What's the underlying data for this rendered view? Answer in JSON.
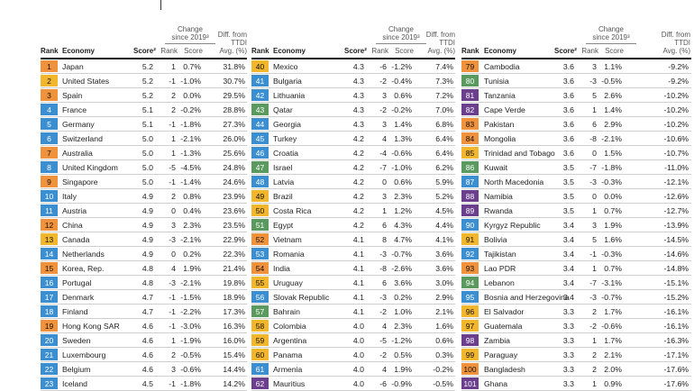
{
  "headers": {
    "rank": "Rank",
    "economy": "Economy",
    "score": "Score²",
    "change_group": "Change\nsince 2019³",
    "change_rank": "Rank",
    "change_score": "Score",
    "diff": "Diff. from\nTTDI\nAvg. (%)"
  },
  "colors": {
    "orange": "#f0923c",
    "blue": "#3b8fd1",
    "yellow": "#f2b62c",
    "green": "#5a9a5f",
    "teal": "#2e8bb8",
    "purple": "#6b3f8e"
  },
  "columns": [
    {
      "rows": [
        {
          "rank": "1",
          "economy": "Japan",
          "score": "5.2",
          "crank": "1",
          "cscore": "0.7%",
          "diff": "31.8%",
          "color": "#f0923c"
        },
        {
          "rank": "2",
          "economy": "United States",
          "score": "5.2",
          "crank": "-1",
          "cscore": "-1.0%",
          "diff": "30.7%",
          "color": "#f2b62c"
        },
        {
          "rank": "3",
          "economy": "Spain",
          "score": "5.2",
          "crank": "2",
          "cscore": "0.0%",
          "diff": "29.5%",
          "color": "#f0923c"
        },
        {
          "rank": "4",
          "economy": "France",
          "score": "5.1",
          "crank": "2",
          "cscore": "-0.2%",
          "diff": "28.8%",
          "color": "#3b8fd1"
        },
        {
          "rank": "5",
          "economy": "Germany",
          "score": "5.1",
          "crank": "-1",
          "cscore": "-1.8%",
          "diff": "27.3%",
          "color": "#3b8fd1"
        },
        {
          "rank": "6",
          "economy": "Switzerland",
          "score": "5.0",
          "crank": "1",
          "cscore": "-2.1%",
          "diff": "26.0%",
          "color": "#3b8fd1"
        },
        {
          "rank": "7",
          "economy": "Australia",
          "score": "5.0",
          "crank": "1",
          "cscore": "-1.3%",
          "diff": "25.6%",
          "color": "#f0923c"
        },
        {
          "rank": "8",
          "economy": "United Kingdom",
          "score": "5.0",
          "crank": "-5",
          "cscore": "-4.5%",
          "diff": "24.8%",
          "color": "#3b8fd1"
        },
        {
          "rank": "9",
          "economy": "Singapore",
          "score": "5.0",
          "crank": "-1",
          "cscore": "-1.4%",
          "diff": "24.6%",
          "color": "#f0923c"
        },
        {
          "rank": "10",
          "economy": "Italy",
          "score": "4.9",
          "crank": "2",
          "cscore": "0.8%",
          "diff": "23.9%",
          "color": "#3b8fd1"
        },
        {
          "rank": "11",
          "economy": "Austria",
          "score": "4.9",
          "crank": "0",
          "cscore": "0.4%",
          "diff": "23.6%",
          "color": "#3b8fd1"
        },
        {
          "rank": "12",
          "economy": "China",
          "score": "4.9",
          "crank": "3",
          "cscore": "2.3%",
          "diff": "23.5%",
          "color": "#f0923c"
        },
        {
          "rank": "13",
          "economy": "Canada",
          "score": "4.9",
          "crank": "-3",
          "cscore": "-2.1%",
          "diff": "22.9%",
          "color": "#f2b62c"
        },
        {
          "rank": "14",
          "economy": "Netherlands",
          "score": "4.9",
          "crank": "0",
          "cscore": "0.2%",
          "diff": "22.3%",
          "color": "#3b8fd1"
        },
        {
          "rank": "15",
          "economy": "Korea, Rep.",
          "score": "4.8",
          "crank": "4",
          "cscore": "1.9%",
          "diff": "21.4%",
          "color": "#f0923c"
        },
        {
          "rank": "16",
          "economy": "Portugal",
          "score": "4.8",
          "crank": "-3",
          "cscore": "-2.1%",
          "diff": "19.8%",
          "color": "#3b8fd1"
        },
        {
          "rank": "17",
          "economy": "Denmark",
          "score": "4.7",
          "crank": "-1",
          "cscore": "-1.5%",
          "diff": "18.9%",
          "color": "#3b8fd1"
        },
        {
          "rank": "18",
          "economy": "Finland",
          "score": "4.7",
          "crank": "-1",
          "cscore": "-2.2%",
          "diff": "17.3%",
          "color": "#3b8fd1"
        },
        {
          "rank": "19",
          "economy": "Hong Kong SAR",
          "score": "4.6",
          "crank": "-1",
          "cscore": "-3.0%",
          "diff": "16.3%",
          "color": "#f0923c"
        },
        {
          "rank": "20",
          "economy": "Sweden",
          "score": "4.6",
          "crank": "1",
          "cscore": "-1.9%",
          "diff": "16.0%",
          "color": "#3b8fd1"
        },
        {
          "rank": "21",
          "economy": "Luxembourg",
          "score": "4.6",
          "crank": "2",
          "cscore": "-0.5%",
          "diff": "15.4%",
          "color": "#3b8fd1"
        },
        {
          "rank": "22",
          "economy": "Belgium",
          "score": "4.6",
          "crank": "3",
          "cscore": "-0.6%",
          "diff": "14.4%",
          "color": "#3b8fd1"
        },
        {
          "rank": "23",
          "economy": "Iceland",
          "score": "4.5",
          "crank": "-1",
          "cscore": "-1.8%",
          "diff": "14.2%",
          "color": "#3b8fd1"
        }
      ]
    },
    {
      "rows": [
        {
          "rank": "40",
          "economy": "Mexico",
          "score": "4.3",
          "crank": "-6",
          "cscore": "-1.2%",
          "diff": "7.4%",
          "color": "#f2b62c"
        },
        {
          "rank": "41",
          "economy": "Bulgaria",
          "score": "4.3",
          "crank": "-2",
          "cscore": "-0.4%",
          "diff": "7.3%",
          "color": "#3b8fd1"
        },
        {
          "rank": "42",
          "economy": "Lithuania",
          "score": "4.3",
          "crank": "3",
          "cscore": "0.6%",
          "diff": "7.2%",
          "color": "#3b8fd1"
        },
        {
          "rank": "43",
          "economy": "Qatar",
          "score": "4.3",
          "crank": "-2",
          "cscore": "-0.2%",
          "diff": "7.0%",
          "color": "#5a9a5f"
        },
        {
          "rank": "44",
          "economy": "Georgia",
          "score": "4.3",
          "crank": "3",
          "cscore": "1.4%",
          "diff": "6.8%",
          "color": "#3b8fd1"
        },
        {
          "rank": "45",
          "economy": "Turkey",
          "score": "4.2",
          "crank": "4",
          "cscore": "1.3%",
          "diff": "6.4%",
          "color": "#3b8fd1"
        },
        {
          "rank": "46",
          "economy": "Croatia",
          "score": "4.2",
          "crank": "-4",
          "cscore": "-0.6%",
          "diff": "6.4%",
          "color": "#3b8fd1"
        },
        {
          "rank": "47",
          "economy": "Israel",
          "score": "4.2",
          "crank": "-7",
          "cscore": "-1.0%",
          "diff": "6.2%",
          "color": "#5a9a5f"
        },
        {
          "rank": "48",
          "economy": "Latvia",
          "score": "4.2",
          "crank": "0",
          "cscore": "0.6%",
          "diff": "5.9%",
          "color": "#3b8fd1"
        },
        {
          "rank": "49",
          "economy": "Brazil",
          "score": "4.2",
          "crank": "3",
          "cscore": "2.3%",
          "diff": "5.2%",
          "color": "#f2b62c"
        },
        {
          "rank": "50",
          "economy": "Costa Rica",
          "score": "4.2",
          "crank": "1",
          "cscore": "1.2%",
          "diff": "4.5%",
          "color": "#f2b62c"
        },
        {
          "rank": "51",
          "economy": "Egypt",
          "score": "4.2",
          "crank": "6",
          "cscore": "4.3%",
          "diff": "4.4%",
          "color": "#5a9a5f"
        },
        {
          "rank": "52",
          "economy": "Vietnam",
          "score": "4.1",
          "crank": "8",
          "cscore": "4.7%",
          "diff": "4.1%",
          "color": "#f0923c"
        },
        {
          "rank": "53",
          "economy": "Romania",
          "score": "4.1",
          "crank": "-3",
          "cscore": "-0.7%",
          "diff": "3.6%",
          "color": "#3b8fd1"
        },
        {
          "rank": "54",
          "economy": "India",
          "score": "4.1",
          "crank": "-8",
          "cscore": "-2.6%",
          "diff": "3.6%",
          "color": "#f0923c"
        },
        {
          "rank": "55",
          "economy": "Uruguay",
          "score": "4.1",
          "crank": "6",
          "cscore": "3.6%",
          "diff": "3.0%",
          "color": "#f2b62c"
        },
        {
          "rank": "56",
          "economy": "Slovak Republic",
          "score": "4.1",
          "crank": "-3",
          "cscore": "0.2%",
          "diff": "2.9%",
          "color": "#3b8fd1"
        },
        {
          "rank": "57",
          "economy": "Bahrain",
          "score": "4.1",
          "crank": "-2",
          "cscore": "1.0%",
          "diff": "2.1%",
          "color": "#5a9a5f"
        },
        {
          "rank": "58",
          "economy": "Colombia",
          "score": "4.0",
          "crank": "4",
          "cscore": "2.3%",
          "diff": "1.6%",
          "color": "#f2b62c"
        },
        {
          "rank": "59",
          "economy": "Argentina",
          "score": "4.0",
          "crank": "-5",
          "cscore": "-1.2%",
          "diff": "0.6%",
          "color": "#f2b62c"
        },
        {
          "rank": "60",
          "economy": "Panama",
          "score": "4.0",
          "crank": "-2",
          "cscore": "0.5%",
          "diff": "0.3%",
          "color": "#f2b62c"
        },
        {
          "rank": "61",
          "economy": "Armenia",
          "score": "4.0",
          "crank": "4",
          "cscore": "1.9%",
          "diff": "-0.2%",
          "color": "#3b8fd1"
        },
        {
          "rank": "62",
          "economy": "Mauritius",
          "score": "4.0",
          "crank": "-6",
          "cscore": "-0.9%",
          "diff": "-0.5%",
          "color": "#6b3f8e"
        }
      ]
    },
    {
      "rows": [
        {
          "rank": "79",
          "economy": "Cambodia",
          "score": "3.6",
          "crank": "3",
          "cscore": "1.1%",
          "diff": "-9.2%",
          "color": "#f0923c"
        },
        {
          "rank": "80",
          "economy": "Tunisia",
          "score": "3.6",
          "crank": "-3",
          "cscore": "-0.5%",
          "diff": "-9.2%",
          "color": "#5a9a5f"
        },
        {
          "rank": "81",
          "economy": "Tanzania",
          "score": "3.6",
          "crank": "5",
          "cscore": "2.6%",
          "diff": "-10.2%",
          "color": "#6b3f8e"
        },
        {
          "rank": "82",
          "economy": "Cape Verde",
          "score": "3.6",
          "crank": "1",
          "cscore": "1.4%",
          "diff": "-10.2%",
          "color": "#6b3f8e"
        },
        {
          "rank": "83",
          "economy": "Pakistan",
          "score": "3.6",
          "crank": "6",
          "cscore": "2.9%",
          "diff": "-10.2%",
          "color": "#f0923c"
        },
        {
          "rank": "84",
          "economy": "Mongolia",
          "score": "3.6",
          "crank": "-8",
          "cscore": "-2.1%",
          "diff": "-10.6%",
          "color": "#f0923c"
        },
        {
          "rank": "85",
          "economy": "Trinidad and Tobago",
          "score": "3.6",
          "crank": "0",
          "cscore": "1.5%",
          "diff": "-10.7%",
          "color": "#f2b62c"
        },
        {
          "rank": "86",
          "economy": "Kuwait",
          "score": "3.5",
          "crank": "-7",
          "cscore": "-1.8%",
          "diff": "-11.0%",
          "color": "#5a9a5f"
        },
        {
          "rank": "87",
          "economy": "North Macedonia",
          "score": "3.5",
          "crank": "-3",
          "cscore": "-0.3%",
          "diff": "-12.1%",
          "color": "#3b8fd1"
        },
        {
          "rank": "88",
          "economy": "Namibia",
          "score": "3.5",
          "crank": "0",
          "cscore": "0.0%",
          "diff": "-12.6%",
          "color": "#6b3f8e"
        },
        {
          "rank": "89",
          "economy": "Rwanda",
          "score": "3.5",
          "crank": "1",
          "cscore": "0.7%",
          "diff": "-12.7%",
          "color": "#6b3f8e"
        },
        {
          "rank": "90",
          "economy": "Kyrgyz Republic",
          "score": "3.4",
          "crank": "3",
          "cscore": "1.9%",
          "diff": "-13.9%",
          "color": "#3b8fd1"
        },
        {
          "rank": "91",
          "economy": "Bolivia",
          "score": "3.4",
          "crank": "5",
          "cscore": "1.6%",
          "diff": "-14.5%",
          "color": "#f2b62c"
        },
        {
          "rank": "92",
          "economy": "Tajikistan",
          "score": "3.4",
          "crank": "-1",
          "cscore": "-0.3%",
          "diff": "-14.6%",
          "color": "#3b8fd1"
        },
        {
          "rank": "93",
          "economy": "Lao PDR",
          "score": "3.4",
          "crank": "1",
          "cscore": "0.7%",
          "diff": "-14.8%",
          "color": "#f0923c"
        },
        {
          "rank": "94",
          "economy": "Lebanon",
          "score": "3.4",
          "crank": "-7",
          "cscore": "-3.1%",
          "diff": "-15.1%",
          "color": "#5a9a5f"
        },
        {
          "rank": "95",
          "economy": "Bosnia and Herzegovina",
          "score": "3.4",
          "crank": "-3",
          "cscore": "-0.7%",
          "diff": "-15.2%",
          "color": "#3b8fd1"
        },
        {
          "rank": "96",
          "economy": "El Salvador",
          "score": "3.3",
          "crank": "2",
          "cscore": "1.7%",
          "diff": "-16.1%",
          "color": "#f2b62c"
        },
        {
          "rank": "97",
          "economy": "Guatemala",
          "score": "3.3",
          "crank": "-2",
          "cscore": "-0.6%",
          "diff": "-16.1%",
          "color": "#f2b62c"
        },
        {
          "rank": "98",
          "economy": "Zambia",
          "score": "3.3",
          "crank": "1",
          "cscore": "1.7%",
          "diff": "-16.3%",
          "color": "#6b3f8e"
        },
        {
          "rank": "99",
          "economy": "Paraguay",
          "score": "3.3",
          "crank": "2",
          "cscore": "2.1%",
          "diff": "-17.1%",
          "color": "#f2b62c"
        },
        {
          "rank": "100",
          "economy": "Bangladesh",
          "score": "3.3",
          "crank": "2",
          "cscore": "2.0%",
          "diff": "-17.6%",
          "color": "#f0923c"
        },
        {
          "rank": "101",
          "economy": "Ghana",
          "score": "3.3",
          "crank": "1",
          "cscore": "0.9%",
          "diff": "-17.6%",
          "color": "#6b3f8e"
        }
      ]
    }
  ]
}
